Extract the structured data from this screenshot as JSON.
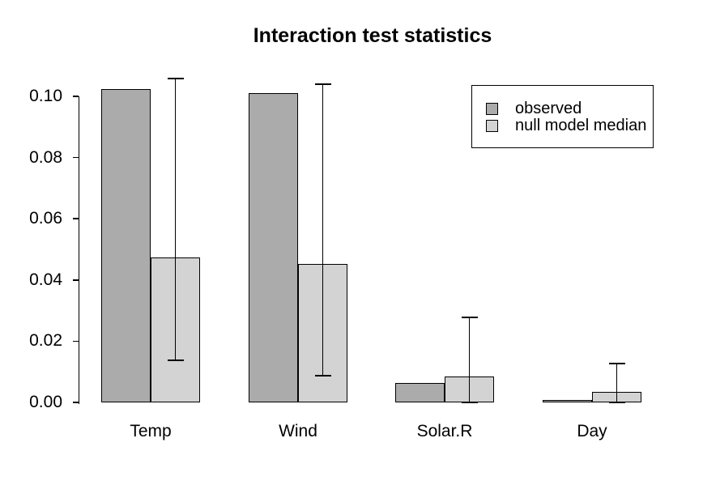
{
  "title": "Interaction test statistics",
  "legend": {
    "items": [
      {
        "label": "observed",
        "color": "#ababab"
      },
      {
        "label": "null model median",
        "color": "#d3d3d3"
      }
    ]
  },
  "chart_data": {
    "type": "bar",
    "title": "Interaction test statistics",
    "categories": [
      "Temp",
      "Wind",
      "Solar.R",
      "Day"
    ],
    "series": [
      {
        "name": "observed",
        "color": "#ababab",
        "values": [
          0.1025,
          0.101,
          0.0063,
          0.0008
        ]
      },
      {
        "name": "null model median",
        "color": "#d3d3d3",
        "values": [
          0.0474,
          0.0452,
          0.0085,
          0.0034
        ]
      }
    ],
    "error_bars": {
      "attached_to": "null model median",
      "low": [
        0.0138,
        0.0087,
        0.0,
        0.0
      ],
      "high": [
        0.1058,
        0.104,
        0.0278,
        0.0127
      ]
    },
    "xlabel": "",
    "ylabel": "",
    "ylim": [
      0,
      0.1
    ],
    "yticks": [
      0,
      0.02,
      0.04,
      0.06,
      0.08,
      0.1
    ],
    "ytick_labels": [
      "0.00",
      "0.02",
      "0.04",
      "0.06",
      "0.08",
      "0.10"
    ],
    "grid": false,
    "legend_position": "top-right",
    "bar_border_color": "#000000",
    "axis_color": "#000000",
    "background": "#ffffff"
  }
}
